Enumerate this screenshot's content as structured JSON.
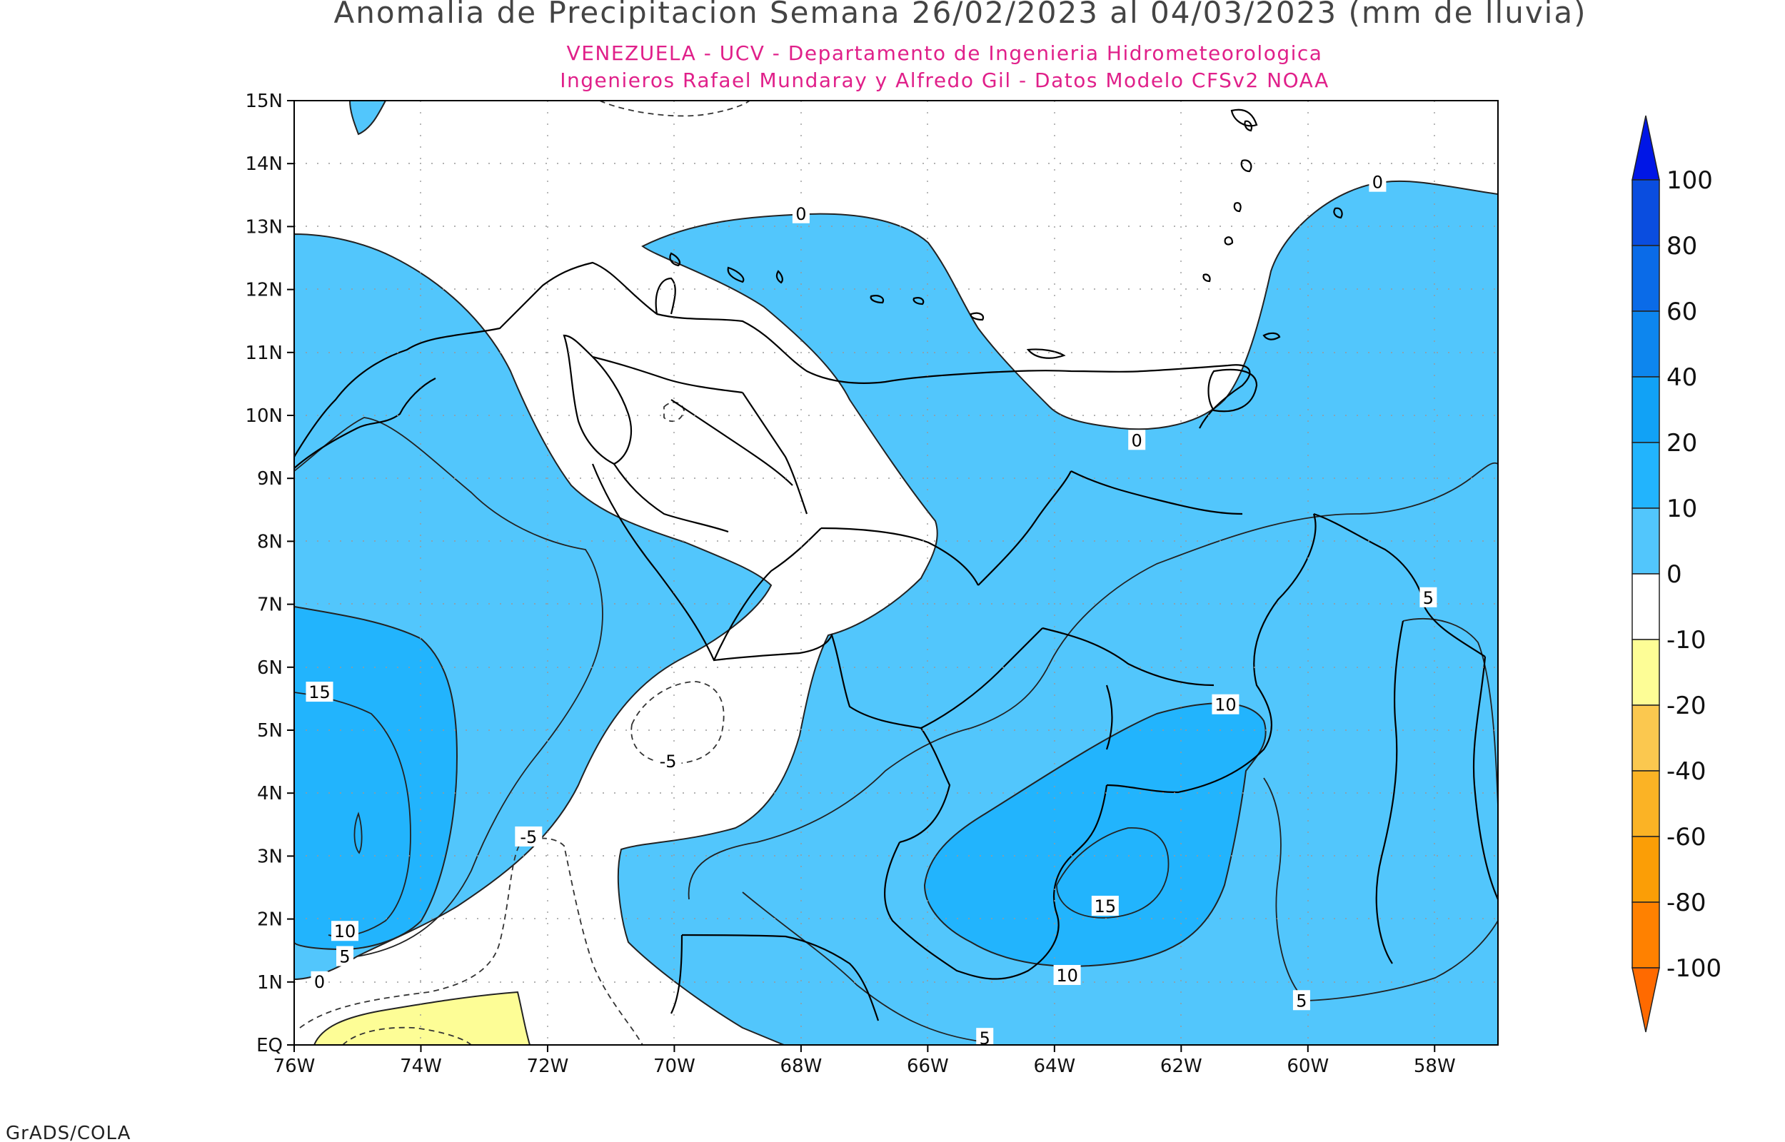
{
  "title": "Anomalia de Precipitacion Semana 26/02/2023 al 04/03/2023 (mm de lluvia)",
  "subtitle_1": "VENEZUELA - UCV - Departamento de Ingenieria Hidrometeorologica",
  "subtitle_2": "Ingenieros Rafael Mundaray y Alfredo Gil - Datos Modelo CFSv2 NOAA",
  "footer": "GrADS/COLA",
  "colors": {
    "title": "#444444",
    "subtitle": "#e0208a",
    "land_line": "#000000",
    "contour_line": "#222222"
  },
  "map": {
    "lat_labels": [
      "15N",
      "14N",
      "13N",
      "12N",
      "11N",
      "10N",
      "9N",
      "8N",
      "7N",
      "6N",
      "5N",
      "4N",
      "3N",
      "2N",
      "1N",
      "EQ"
    ],
    "lon_labels": [
      "76W",
      "74W",
      "72W",
      "70W",
      "68W",
      "66W",
      "64W",
      "62W",
      "60W",
      "58W"
    ],
    "lon_range": [
      -76,
      -57
    ],
    "lat_range": [
      0,
      15
    ],
    "grid": true
  },
  "contour_labels": [
    {
      "text": "0",
      "lon": -68.0,
      "lat": 13.2
    },
    {
      "text": "0",
      "lon": -58.9,
      "lat": 13.7
    },
    {
      "text": "0",
      "lon": -62.7,
      "lat": 9.6
    },
    {
      "text": "0",
      "lon": -75.6,
      "lat": 1.0
    },
    {
      "text": "5",
      "lon": -58.1,
      "lat": 7.1
    },
    {
      "text": "5",
      "lon": -75.2,
      "lat": 1.4
    },
    {
      "text": "5",
      "lon": -65.1,
      "lat": 0.1
    },
    {
      "text": "5",
      "lon": -60.1,
      "lat": 0.7
    },
    {
      "text": "10",
      "lon": -61.3,
      "lat": 5.4
    },
    {
      "text": "10",
      "lon": -63.8,
      "lat": 1.1
    },
    {
      "text": "10",
      "lon": -75.2,
      "lat": 1.8
    },
    {
      "text": "15",
      "lon": -75.6,
      "lat": 5.6
    },
    {
      "text": "15",
      "lon": -63.2,
      "lat": 2.2
    },
    {
      "text": "-5",
      "lon": -70.1,
      "lat": 4.5
    },
    {
      "text": "-5",
      "lon": -72.3,
      "lat": 3.3
    }
  ],
  "colorbar": {
    "levels": [
      "100",
      "80",
      "60",
      "40",
      "20",
      "10",
      "0",
      "-10",
      "-20",
      "-40",
      "-60",
      "-80",
      "-100"
    ],
    "colors": [
      "#0016e6",
      "#0a4ddf",
      "#0a6be8",
      "#0d86ee",
      "#11a2f6",
      "#22b4fd",
      "#52c6fc",
      "#ffffff",
      "#fdfd96",
      "#fbc84f",
      "#fbb325",
      "#fb9e06",
      "#ff8100",
      "#ff6a00"
    ]
  },
  "chart_data": {
    "type": "heatmap",
    "title": "Anomalia de Precipitacion Semana 26/02/2023 al 04/03/2023 (mm de lluvia)",
    "xlabel": "",
    "ylabel": "",
    "x_range": [
      -76,
      -57
    ],
    "y_range": [
      0,
      15
    ],
    "levels": [
      -100,
      -80,
      -60,
      -40,
      -20,
      -10,
      0,
      10,
      20,
      40,
      60,
      80,
      100
    ],
    "regions": [
      {
        "label": "west 0-10",
        "level_range": [
          0,
          10
        ]
      },
      {
        "label": "west 10-20 max near 75W 4N",
        "level_range": [
          10,
          20
        ]
      },
      {
        "label": "central-east 0-10",
        "level_range": [
          0,
          10
        ]
      },
      {
        "label": "south-central 10-20 near 63W 2.5N",
        "level_range": [
          10,
          20
        ]
      },
      {
        "label": "north Caribbean 0-10",
        "level_range": [
          0,
          10
        ]
      },
      {
        "label": "southwest -20 to -10 near 73W 0.5N",
        "level_range": [
          -20,
          -10
        ]
      }
    ]
  }
}
